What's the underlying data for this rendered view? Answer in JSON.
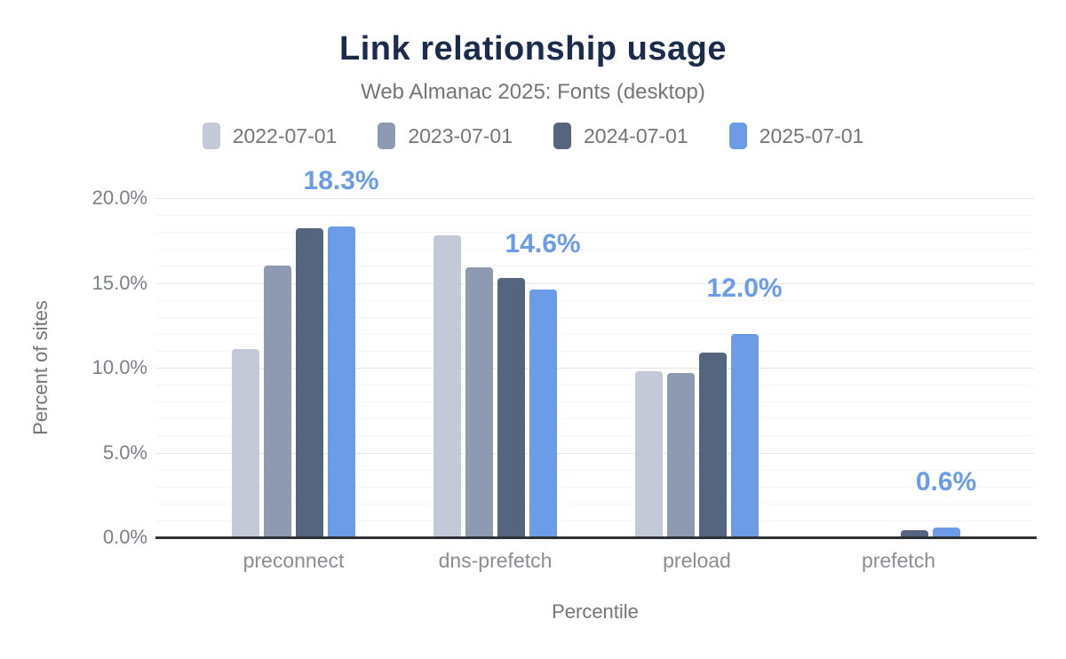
{
  "chart_data": {
    "type": "bar",
    "title": "Link relationship usage",
    "subtitle": "Web Almanac 2025: Fonts (desktop)",
    "xlabel": "Percentile",
    "ylabel": "Percent of sites",
    "categories": [
      "preconnect",
      "dns-prefetch",
      "preload",
      "prefetch"
    ],
    "series": [
      {
        "name": "2022-07-01",
        "color": "#c3c9d7",
        "values": [
          11.1,
          17.8,
          9.8,
          0
        ]
      },
      {
        "name": "2023-07-01",
        "color": "#8e9ab2",
        "values": [
          16.0,
          15.9,
          9.7,
          0
        ]
      },
      {
        "name": "2024-07-01",
        "color": "#55647f",
        "values": [
          18.2,
          15.3,
          10.9,
          0.4
        ]
      },
      {
        "name": "2025-07-01",
        "color": "#6c9ce8",
        "values": [
          18.3,
          14.6,
          12.0,
          0.6
        ]
      }
    ],
    "data_labels": {
      "series": "2025-07-01",
      "texts": [
        "18.3%",
        "14.6%",
        "12.0%",
        "0.6%"
      ],
      "color": "#6c9ce8"
    },
    "y_ticks": [
      {
        "value": 20,
        "label": "20.0%"
      },
      {
        "value": 15,
        "label": "15.0%"
      },
      {
        "value": 10,
        "label": "10.0%"
      },
      {
        "value": 5,
        "label": "5.0%"
      },
      {
        "value": 0,
        "label": "0.0%"
      }
    ],
    "ylim": [
      0,
      20
    ],
    "grid": {
      "minor_step": 1,
      "major_step": 5,
      "minor_on": true
    },
    "legend_position": "top",
    "axis_line_color": "#2e3235"
  }
}
